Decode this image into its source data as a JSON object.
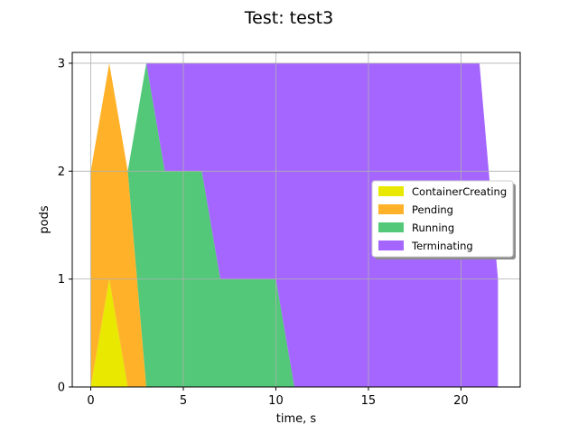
{
  "chart_data": {
    "type": "area",
    "stacked": true,
    "title": "Test: test3",
    "xlabel": "time, s",
    "ylabel": "pods",
    "xlim": [
      -1,
      23.2
    ],
    "ylim": [
      0,
      3.1
    ],
    "xticks": [
      0,
      5,
      10,
      15,
      20
    ],
    "yticks": [
      0,
      1,
      2,
      3
    ],
    "grid": true,
    "legend_position": "center-right",
    "x": [
      0,
      1,
      2,
      3,
      4,
      5,
      6,
      7,
      8,
      9,
      10,
      11,
      12,
      13,
      14,
      15,
      16,
      17,
      18,
      19,
      20,
      21,
      22
    ],
    "series": [
      {
        "name": "ContainerCreating",
        "color": "#e8e800",
        "values": [
          0,
          1,
          0,
          0,
          0,
          0,
          0,
          0,
          0,
          0,
          0,
          0,
          0,
          0,
          0,
          0,
          0,
          0,
          0,
          0,
          0,
          0,
          0
        ]
      },
      {
        "name": "Pending",
        "color": "#ffb229",
        "values": [
          2,
          2,
          2,
          0,
          0,
          0,
          0,
          0,
          0,
          0,
          0,
          0,
          0,
          0,
          0,
          0,
          0,
          0,
          0,
          0,
          0,
          0,
          0
        ]
      },
      {
        "name": "Running",
        "color": "#52c878",
        "values": [
          0,
          0,
          0,
          3,
          2,
          2,
          2,
          1,
          1,
          1,
          1,
          0,
          0,
          0,
          0,
          0,
          0,
          0,
          0,
          0,
          0,
          0,
          0
        ]
      },
      {
        "name": "Terminating",
        "color": "#a566ff",
        "values": [
          0,
          0,
          0,
          0,
          1,
          1,
          1,
          2,
          2,
          2,
          2,
          3,
          3,
          3,
          3,
          3,
          3,
          3,
          3,
          3,
          3,
          3,
          1
        ]
      }
    ]
  }
}
